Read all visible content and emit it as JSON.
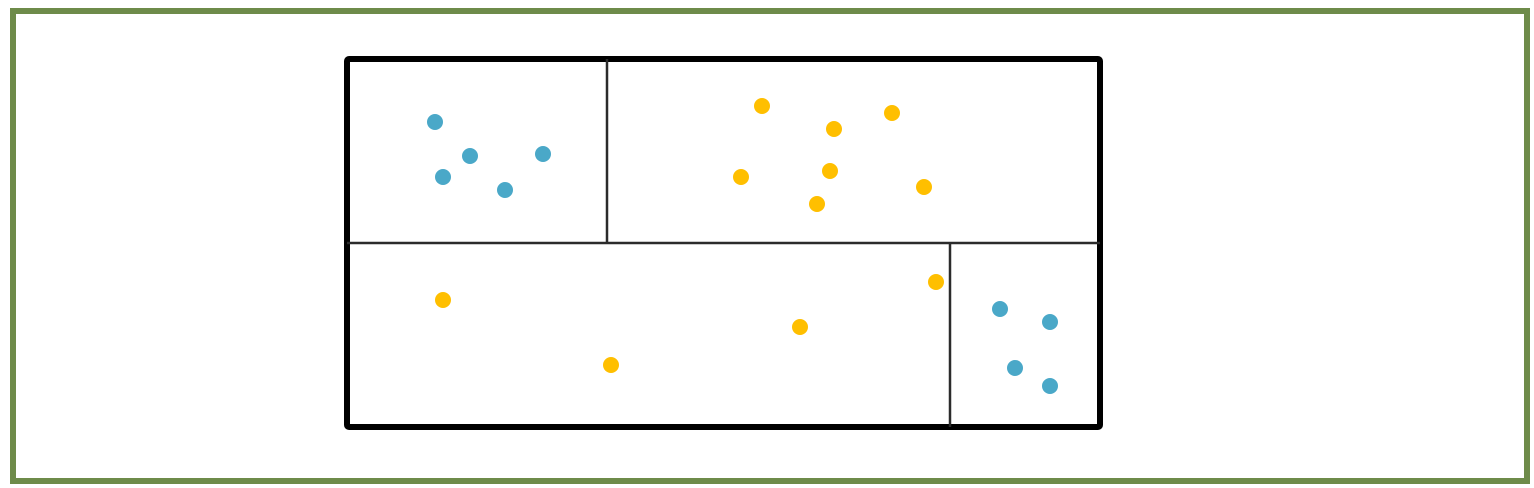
{
  "colors": {
    "frame_border": "#6e8b4a",
    "box_border": "#000000",
    "split_line": "#2b2b2b",
    "class_a": "#4aa8c8",
    "class_b": "#ffbf00"
  },
  "diagram": {
    "type": "partition-scatter",
    "classes": [
      "class_a",
      "class_b"
    ],
    "regions": [
      {
        "name": "top-left",
        "class": "class_a",
        "count": 5
      },
      {
        "name": "top-right",
        "class": "class_b",
        "count": 7
      },
      {
        "name": "bottom-left",
        "class": "class_b",
        "count": 4
      },
      {
        "name": "bottom-right",
        "class": "class_a",
        "count": 4
      }
    ]
  }
}
